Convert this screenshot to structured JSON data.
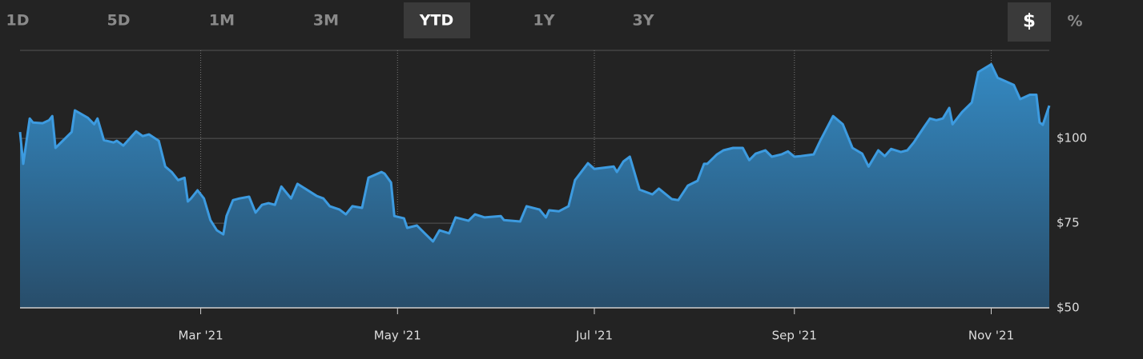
{
  "controls": {
    "ranges": [
      "1D",
      "5D",
      "1M",
      "3M",
      "YTD",
      "1Y",
      "3Y"
    ],
    "active_range": 4,
    "units": [
      "$",
      "%"
    ],
    "active_unit": 0
  },
  "chart_data": {
    "type": "area",
    "color": "#3d9be0",
    "x": [
      3,
      4,
      6,
      7,
      10,
      12,
      13,
      14,
      19,
      20,
      24,
      26,
      27,
      29,
      32,
      33,
      35,
      39,
      41,
      43,
      46,
      48,
      50,
      52,
      54,
      55,
      56,
      58,
      60,
      62,
      64,
      66,
      67,
      69,
      71,
      74,
      76,
      78,
      80,
      82,
      84,
      87,
      89,
      91,
      95,
      97,
      99,
      102,
      104,
      106,
      109,
      111,
      115,
      116,
      118,
      119,
      122,
      123,
      126,
      128,
      131,
      133,
      136,
      138,
      142,
      144,
      147,
      152,
      153,
      158,
      160,
      164,
      166,
      167,
      170,
      173,
      175,
      179,
      181,
      187,
      188,
      190,
      192,
      195,
      199,
      201,
      205,
      207,
      210,
      213,
      215,
      216,
      219,
      221,
      224,
      227,
      229,
      231,
      234,
      236,
      239,
      241,
      243,
      245,
      249,
      251,
      255,
      258,
      261,
      264,
      266,
      269,
      271,
      273,
      276,
      278,
      280,
      283,
      285,
      287,
      289,
      291,
      292,
      295,
      298,
      300,
      304,
      306,
      311,
      313,
      316,
      318,
      319,
      320,
      322
    ],
    "values": [
      101.9,
      92.5,
      105.9,
      104.7,
      104.5,
      105.4,
      106.6,
      97.2,
      101.9,
      108.3,
      106.1,
      104.2,
      105.9,
      99.5,
      98.8,
      99.3,
      97.9,
      102.1,
      100.7,
      101.2,
      99.3,
      91.7,
      90.1,
      87.7,
      88.4,
      81.4,
      82.3,
      84.7,
      82.3,
      75.9,
      72.9,
      71.7,
      77.1,
      81.8,
      82.3,
      82.8,
      78.1,
      80.4,
      80.9,
      80.4,
      85.8,
      82.3,
      86.6,
      85.4,
      83.0,
      82.3,
      80.0,
      79.0,
      77.6,
      80.0,
      79.5,
      88.4,
      90.1,
      89.6,
      87.0,
      77.1,
      76.4,
      73.6,
      74.3,
      72.4,
      69.6,
      72.9,
      72.0,
      76.7,
      75.7,
      77.6,
      76.7,
      77.1,
      75.9,
      75.5,
      80.0,
      79.0,
      76.7,
      78.8,
      78.5,
      80.0,
      87.7,
      92.7,
      91.0,
      91.7,
      90.1,
      93.2,
      94.6,
      84.9,
      83.5,
      85.2,
      82.1,
      81.8,
      86.1,
      87.5,
      92.5,
      92.5,
      95.3,
      96.5,
      97.2,
      97.2,
      93.6,
      95.5,
      96.5,
      94.6,
      95.3,
      96.2,
      94.6,
      94.8,
      95.3,
      99.3,
      106.6,
      104.2,
      97.2,
      95.5,
      91.7,
      96.5,
      94.8,
      96.9,
      96.0,
      96.5,
      98.8,
      103.1,
      105.9,
      105.4,
      105.9,
      109.0,
      104.2,
      107.8,
      110.6,
      119.6,
      121.9,
      117.9,
      115.8,
      111.6,
      112.9,
      112.9,
      104.7,
      104.0,
      109.7
    ],
    "xlim": [
      3,
      322
    ],
    "xticks": [
      {
        "value": 59,
        "label": "Mar '21"
      },
      {
        "value": 120,
        "label": "May '21"
      },
      {
        "value": 181,
        "label": "Jul '21"
      },
      {
        "value": 243,
        "label": "Sep '21"
      },
      {
        "value": 304,
        "label": "Nov '21"
      }
    ],
    "ylim": [
      50,
      126
    ],
    "yticks": [
      {
        "value": 50,
        "label": "$50"
      },
      {
        "value": 75,
        "label": "$75"
      },
      {
        "value": 100,
        "label": "$100"
      }
    ],
    "grid": true
  }
}
